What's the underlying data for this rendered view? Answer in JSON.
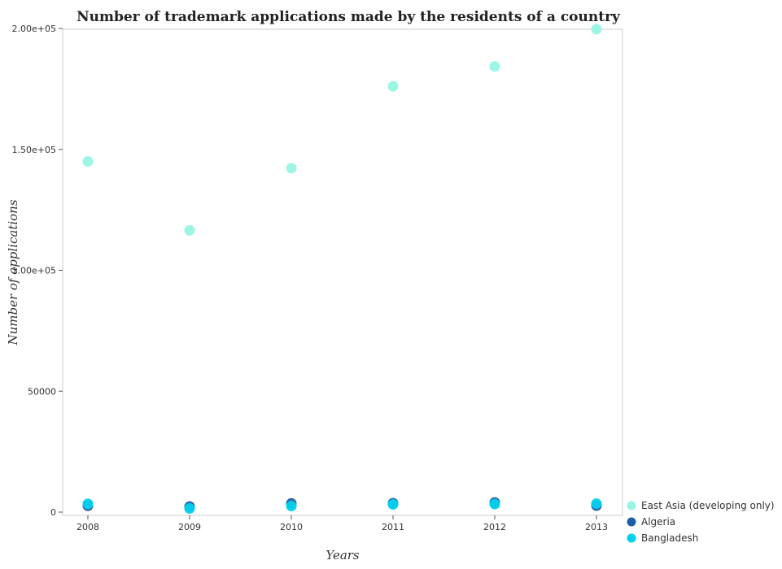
{
  "chart_data": {
    "type": "scatter",
    "title": "Number of trademark applications made by the residents of a country",
    "xlabel": "Years",
    "ylabel": "Number of applications",
    "categories": [
      "2008",
      "2009",
      "2010",
      "2011",
      "2012",
      "2013"
    ],
    "ylim": [
      0,
      210000
    ],
    "yticks": [
      0,
      50000,
      100000,
      150000,
      200000
    ],
    "ytick_labels": [
      "0",
      "50000",
      "1.00e+05",
      "1.50e+05",
      "2.00e+05"
    ],
    "grid": false,
    "legend_position": "bottom-right",
    "series": [
      {
        "name": "East Asia (developing only)",
        "color": "#98f5e1",
        "values": [
          145000,
          116500,
          142200,
          176100,
          184300,
          199700
        ]
      },
      {
        "name": "Algeria",
        "color": "#1f5fa6",
        "values": [
          2600,
          2300,
          3600,
          3700,
          4000,
          2700
        ]
      },
      {
        "name": "Bangladesh",
        "color": "#00d2ec",
        "values": [
          3400,
          1500,
          2500,
          3200,
          3300,
          3500
        ]
      }
    ]
  }
}
